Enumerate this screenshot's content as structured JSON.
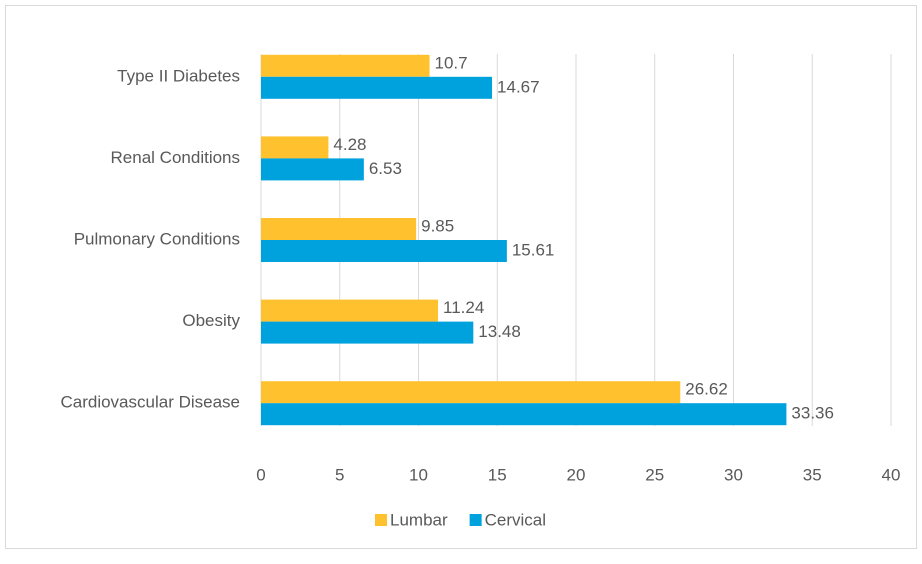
{
  "chart_data": {
    "type": "hbar",
    "categories": [
      "Cardiovascular Disease",
      "Obesity",
      "Pulmonary Conditions",
      "Renal Conditions",
      "Type II Diabetes"
    ],
    "series": [
      {
        "name": "Lumbar",
        "color": "#FFC22E",
        "values": [
          26.62,
          11.24,
          9.85,
          4.28,
          10.7
        ]
      },
      {
        "name": "Cervical",
        "color": "#00A2DE",
        "values": [
          33.36,
          13.48,
          15.61,
          6.53,
          14.67
        ]
      }
    ],
    "xlim": [
      0,
      40
    ],
    "xticks": [
      0,
      5,
      10,
      15,
      20,
      25,
      30,
      35,
      40
    ],
    "grid": true,
    "legend": "bottom"
  }
}
